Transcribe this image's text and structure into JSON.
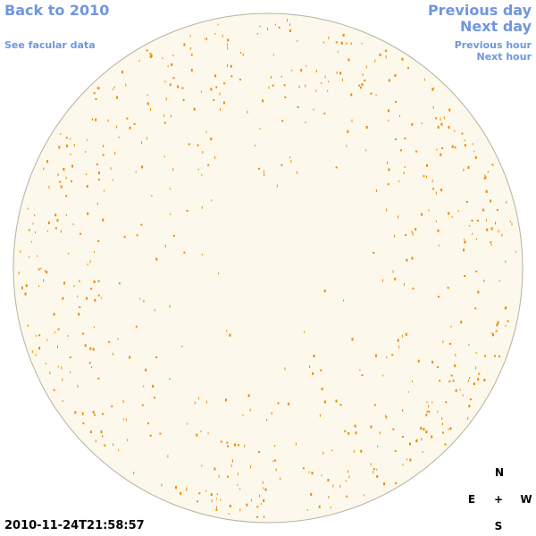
{
  "nav": {
    "back": "Back to 2010",
    "facular_data": "See facular data",
    "previous_day": "Previous day",
    "next_day": "Next day",
    "previous_hour": "Previous hour",
    "next_hour": "Next hour"
  },
  "timestamp": "2010-11-24T21:58:57",
  "compass": {
    "north": "N",
    "east": "E",
    "center": "+",
    "west": "W",
    "south": "S"
  }
}
